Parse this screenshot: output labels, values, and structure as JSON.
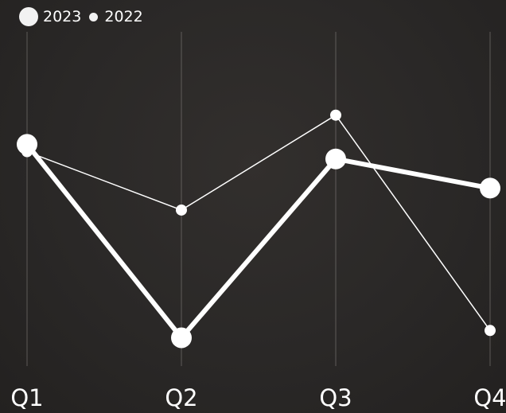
{
  "chart_data": {
    "type": "line",
    "categories": [
      "Q1",
      "Q2",
      "Q3",
      "Q4"
    ],
    "series": [
      {
        "name": "2023",
        "values": [
          89,
          36,
          85,
          77
        ],
        "color": "#ffffff",
        "style": "thick"
      },
      {
        "name": "2022",
        "values": [
          87,
          71,
          97,
          38
        ],
        "color": "#ffffff",
        "style": "thin"
      }
    ],
    "ylim": [
      30,
      105
    ],
    "legend_position": "top-left",
    "grid": "vertical",
    "title": "",
    "xlabel": "",
    "ylabel": ""
  }
}
